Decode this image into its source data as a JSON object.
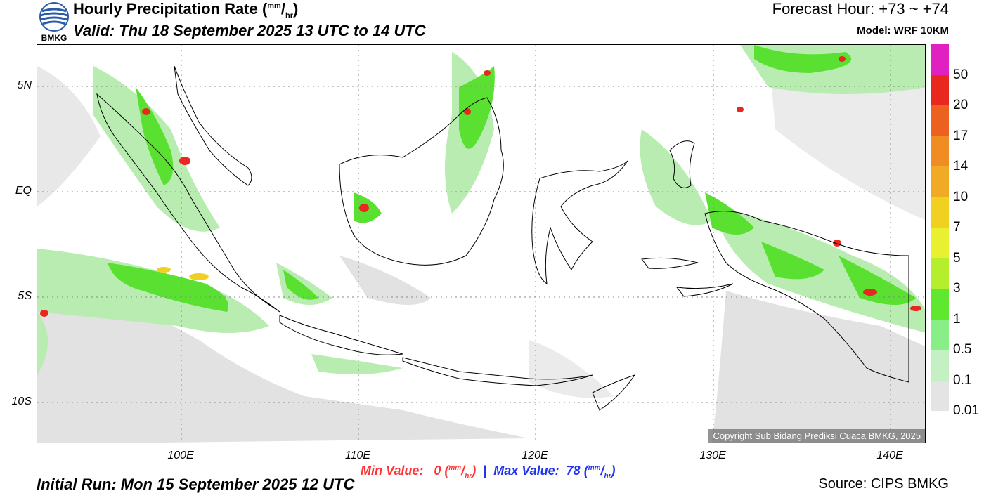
{
  "header": {
    "logo_text": "BMKG",
    "title_main": "Hourly Precipitation Rate (",
    "title_unit_sup": "mm",
    "title_slash": "/",
    "title_unit_sub": "hr",
    "title_close": ")",
    "valid": "Valid: Thu 18 September 2025 13 UTC to 14 UTC",
    "forecast_hour": "Forecast Hour: +73 ~ +74",
    "model": "Model: WRF 10KM"
  },
  "map": {
    "lat_labels": [
      "5N",
      "EQ",
      "5S",
      "10S"
    ],
    "lon_labels": [
      "100E",
      "110E",
      "120E",
      "130E",
      "140E"
    ],
    "copyright": "Copyright Sub Bidang Prediksi Cuaca BMKG, 2025"
  },
  "colorbar": {
    "labels": [
      "50",
      "20",
      "17",
      "14",
      "10",
      "7",
      "5",
      "3",
      "1",
      "0.5",
      "0.1",
      "0.01"
    ],
    "colors": [
      "#e020c0",
      "#e8281e",
      "#ec6020",
      "#f08c24",
      "#f0aa26",
      "#f0d020",
      "#e8f030",
      "#b4ee2c",
      "#60e830",
      "#88ee88",
      "#c4f0c4",
      "#e4e4e4"
    ]
  },
  "footer": {
    "min_label": "Min Value:",
    "min_value": "0",
    "unit_sup": "mm",
    "unit_slash": "/",
    "unit_sub": "hr",
    "separator": "|",
    "max_label": "Max Value:",
    "max_value": "78",
    "initial_run": "Initial Run: Mon 15 September 2025 12 UTC",
    "source": "Source: CIPS BMKG"
  }
}
